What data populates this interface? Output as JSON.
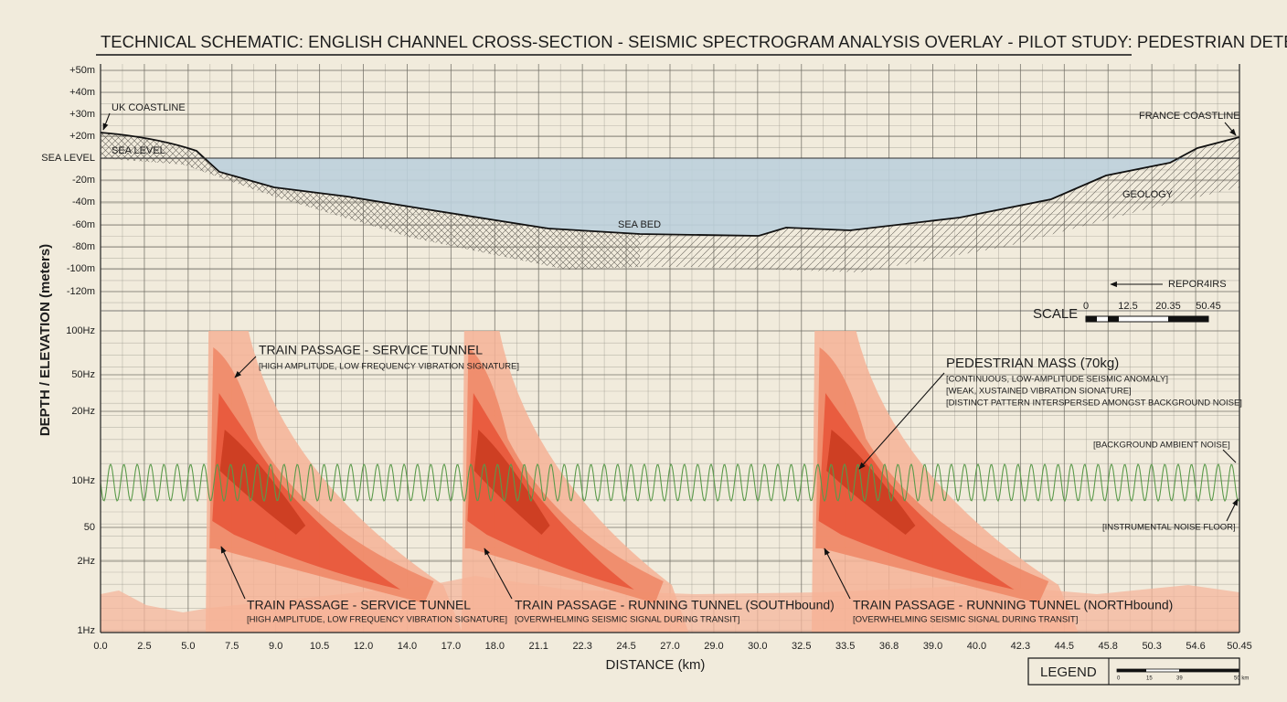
{
  "title": "TECHNICAL SCHEMATIC: ENGLISH CHANNEL CROSS-SECTION - SEISMIC SPECTROGRAM ANALYSIS OVERLAY - PILOT STUDY: PEDESTRIAN DETECTION",
  "y_axis_label": "DEPTH / ELEVATION (meters)",
  "x_axis_label": "DISTANCE (km)",
  "elevation_ticks": [
    "+50m",
    "+40m",
    "+30m",
    "+20m",
    "SEA LEVEL",
    "-20m",
    "-40m",
    "-60m",
    "-80m",
    "-100m",
    "-120m"
  ],
  "frequency_ticks": [
    "100Hz",
    "50Hz",
    "20Hz",
    "10Hz",
    "50",
    "2Hz",
    "1Hz"
  ],
  "distance_ticks": [
    "0.0",
    "2.5",
    "5.0",
    "7.5",
    "9.0",
    "10.5",
    "12.0",
    "14.0",
    "17.0",
    "18.0",
    "21.1",
    "22.3",
    "24.5",
    "27.0",
    "29.0",
    "30.0",
    "32.5",
    "33.5",
    "36.8",
    "39.0",
    "40.0",
    "42.3",
    "44.5",
    "45.8",
    "50.3",
    "54.6",
    "50.45"
  ],
  "profile_labels": {
    "uk_coastline": "UK COASTLINE",
    "france_coastline": "FRANCE COASTLINE",
    "sea_level": "SEA LEVEL",
    "sea_bed": "SEA BED",
    "geology": "GEOLOGY",
    "reports": "REPOR4IRS"
  },
  "scale": {
    "title": "SCALE",
    "labels": [
      "0",
      "12.5",
      "20.35",
      "50.45"
    ]
  },
  "annotations": {
    "service_top": {
      "title": "TRAIN PASSAGE - SERVICE TUNNEL",
      "note": "[HIGH AMPLITUDE, LOW FREQUENCY VIBRATION SIGNATURE]"
    },
    "pedestrian": {
      "title": "PEDESTRIAN MASS (70kg)",
      "notes": [
        "[CONTINUOUS, LOW-AMPLITUDE SEISMIC ANOMALY]",
        "[WEAK, XUSTAINED VIBRATION SIONATURE]",
        "[DISTINCT PATTERN INTERSPERSED AMONGST BACKGROUND NOISE]"
      ]
    },
    "background_noise": "[BACKGROUND AMBIENT NOISE]",
    "noise_floor": "[INSTRUMENTAL NOISE FLOOR]",
    "service_bottom": {
      "title": "TRAIN PASSAGE - SERVICE TUNNEL",
      "note": "[HIGH AMPLITUDE, LOW FREQUENCY VIBRATION SIGNATURE]"
    },
    "running_south": {
      "title": "TRAIN PASSAGE - RUNNING TUNNEL (SOUTHbound)",
      "note": "[OVERWHELMING SEISMIC SIGNAL DURING TRANSIT]"
    },
    "running_north": {
      "title": "TRAIN PASSAGE - RUNNING TUNNEL (NORTHbound)",
      "note": "[OVERWHELMING SEISMIC SIGNAL DURING TRANSIT]"
    }
  },
  "legend": {
    "title": "LEGEND",
    "labels": [
      "0",
      "15",
      "39",
      "50 km"
    ]
  }
}
